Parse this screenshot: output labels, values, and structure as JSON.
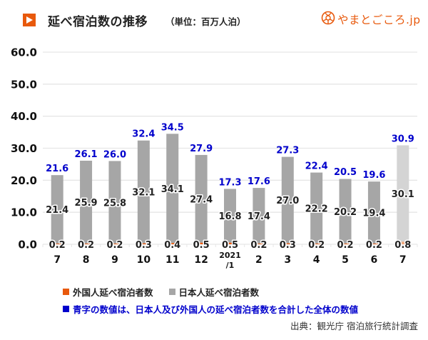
{
  "header": {
    "title": "延べ宿泊数の推移",
    "unit": "（単位：百万人泊）",
    "logo_text": "やまとごころ.jp",
    "title_icon": "play-triangle-icon",
    "logo_icon": "yamatogokoro-logo-icon"
  },
  "colors": {
    "accent": "#e8590c",
    "foreign": "#e8590c",
    "foreign_light": "#f2a77a",
    "japanese": "#a6a6a6",
    "japanese_light": "#d4d4d4",
    "total_label": "#0000cc",
    "grid": "#e6e6e6"
  },
  "legend": {
    "foreign": "外国人延べ宿泊者数",
    "japanese": "日本人延べ宿泊者数",
    "note": "青字の数値は、日本人及び外国人の延べ宿泊者数を合計した全体の数値"
  },
  "source": "出典：観光庁 宿泊旅行統計調査",
  "chart_data": {
    "type": "bar",
    "stacked": true,
    "title": "延べ宿泊数の推移",
    "subtitle": "（単位：百万人泊）",
    "xlabel": "",
    "ylabel": "",
    "ylim": [
      0,
      60
    ],
    "yticks": [
      "0.0",
      "10.0",
      "20.0",
      "30.0",
      "40.0",
      "50.0",
      "60.0"
    ],
    "grid": true,
    "legend_position": "bottom",
    "categories": [
      "7",
      "8",
      "9",
      "10",
      "11",
      "12",
      "2021\n/1",
      "2",
      "3",
      "4",
      "5",
      "6",
      "7"
    ],
    "category_lines": [
      [
        "7"
      ],
      [
        "8"
      ],
      [
        "9"
      ],
      [
        "10"
      ],
      [
        "11"
      ],
      [
        "12"
      ],
      [
        "2021",
        "/1"
      ],
      [
        "2"
      ],
      [
        "3"
      ],
      [
        "4"
      ],
      [
        "5"
      ],
      [
        "6"
      ],
      [
        "7"
      ]
    ],
    "highlighted_last": true,
    "series": [
      {
        "name": "外国人延べ宿泊者数",
        "values": [
          0.2,
          0.2,
          0.2,
          0.3,
          0.4,
          0.5,
          0.5,
          0.2,
          0.3,
          0.2,
          0.2,
          0.2,
          0.8
        ],
        "labels": [
          "0.2",
          "0.2",
          "0.2",
          "0.3",
          "0.4",
          "0.5",
          "0.5",
          "0.2",
          "0.3",
          "0.2",
          "0.2",
          "0.2",
          "0.8"
        ]
      },
      {
        "name": "日本人延べ宿泊者数",
        "values": [
          21.4,
          25.9,
          25.8,
          32.1,
          34.1,
          27.4,
          16.8,
          17.4,
          27.0,
          22.2,
          20.2,
          19.4,
          30.1
        ],
        "labels": [
          "21.4",
          "25.9",
          "25.8",
          "32.1",
          "34.1",
          "27.4",
          "16.8",
          "17.4",
          "27.0",
          "22.2",
          "20.2",
          "19.4",
          "30.1"
        ]
      }
    ],
    "totals": [
      21.6,
      26.1,
      26.0,
      32.4,
      34.5,
      27.9,
      17.3,
      17.6,
      27.3,
      22.4,
      20.5,
      19.6,
      30.9
    ],
    "total_labels": [
      "21.6",
      "26.1",
      "26.0",
      "32.4",
      "34.5",
      "27.9",
      "17.3",
      "17.6",
      "27.3",
      "22.4",
      "20.5",
      "19.6",
      "30.9"
    ]
  }
}
